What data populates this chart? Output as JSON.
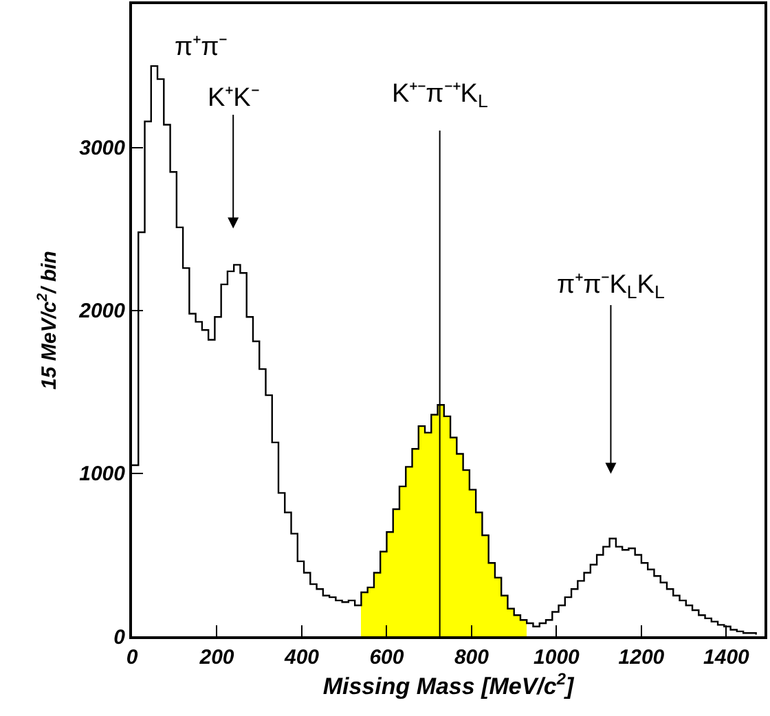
{
  "chart_data": {
    "type": "histogram",
    "xlabel": "Missing Mass [MeV/c$^{2}$]",
    "ylabel": "15 MeV/c$^{2}$/ bin",
    "bins": [
      0,
      15,
      30,
      45,
      60,
      75,
      90,
      105,
      120,
      135,
      150,
      165,
      180,
      195,
      210,
      225,
      240,
      255,
      270,
      285,
      300,
      315,
      330,
      345,
      360,
      375,
      390,
      405,
      420,
      435,
      450,
      465,
      480,
      495,
      510,
      525,
      540,
      555,
      570,
      585,
      600,
      615,
      630,
      645,
      660,
      675,
      690,
      705,
      720,
      735,
      750,
      765,
      780,
      795,
      810,
      825,
      840,
      855,
      870,
      885,
      900,
      915,
      930,
      945,
      960,
      975,
      990,
      1005,
      1020,
      1035,
      1050,
      1065,
      1080,
      1095,
      1110,
      1125,
      1140,
      1155,
      1170,
      1185,
      1200,
      1215,
      1230,
      1245,
      1260,
      1275,
      1290,
      1305,
      1320,
      1335,
      1350,
      1365,
      1380,
      1395,
      1410,
      1425,
      1440,
      1455,
      1470,
      1485
    ],
    "series": [
      {
        "type": "step",
        "color": "#000000",
        "x": [
          0,
          15,
          30,
          45,
          60,
          75,
          90,
          105,
          120,
          135,
          150,
          165,
          180,
          195,
          210,
          225,
          240,
          255,
          270,
          285,
          300,
          315,
          330,
          345,
          360,
          375,
          390,
          405,
          420,
          435,
          450,
          465,
          480,
          495,
          510,
          525,
          540,
          555,
          570,
          585,
          600,
          615,
          630,
          645,
          660,
          675,
          690,
          705,
          720,
          735,
          750,
          765,
          780,
          795,
          810,
          825,
          840,
          855,
          870,
          885,
          900,
          915,
          930,
          945,
          960,
          975,
          990,
          1005,
          1020,
          1035,
          1050,
          1065,
          1080,
          1095,
          1110,
          1125,
          1140,
          1155,
          1170,
          1185,
          1200,
          1215,
          1230,
          1245,
          1260,
          1275,
          1290,
          1305,
          1320,
          1335,
          1350,
          1365,
          1380,
          1395,
          1410,
          1425,
          1440,
          1455,
          1470
        ],
        "values": [
          1050,
          2480,
          3160,
          3500,
          3420,
          3140,
          2850,
          2510,
          2260,
          1980,
          1930,
          1880,
          1820,
          1960,
          2160,
          2240,
          2280,
          2230,
          1960,
          1810,
          1640,
          1480,
          1190,
          880,
          760,
          630,
          460,
          390,
          320,
          290,
          250,
          240,
          220,
          210,
          220,
          190,
          270,
          300,
          390,
          520,
          640,
          780,
          920,
          1040,
          1150,
          1290,
          1250,
          1360,
          1420,
          1350,
          1220,
          1120,
          1020,
          900,
          760,
          620,
          450,
          360,
          250,
          170,
          130,
          100,
          80,
          60,
          80,
          100,
          150,
          190,
          240,
          290,
          340,
          390,
          440,
          500,
          550,
          600,
          550,
          530,
          540,
          500,
          450,
          410,
          370,
          330,
          290,
          250,
          220,
          190,
          160,
          130,
          110,
          90,
          70,
          60,
          40,
          30,
          20,
          20,
          10
        ]
      },
      {
        "color": "#ffff00",
        "values": [
          null,
          null,
          null,
          null,
          null,
          null,
          null,
          null,
          null,
          null,
          null,
          null,
          null,
          null,
          null,
          null,
          null,
          null,
          null,
          null,
          null,
          null,
          null,
          null,
          null,
          null,
          null,
          null,
          null,
          null,
          null,
          null,
          null,
          null,
          null,
          null,
          270,
          300,
          390,
          520,
          640,
          780,
          920,
          1040,
          1150,
          1290,
          1250,
          1360,
          1420,
          1350,
          1220,
          1120,
          1020,
          900,
          760,
          620,
          450,
          360,
          250,
          170,
          130,
          100,
          null,
          null,
          null,
          null,
          null,
          null,
          null,
          null,
          null,
          null,
          null,
          null,
          null,
          null,
          null,
          null,
          null,
          null,
          null,
          null,
          null,
          null,
          null,
          null,
          null,
          null,
          null,
          null,
          null,
          null,
          null,
          null,
          null,
          null,
          null,
          null,
          null
        ]
      }
    ],
    "xlim": [
      0,
      1490
    ],
    "xticks": [
      0,
      200,
      400,
      600,
      800,
      1000,
      1200,
      1400
    ],
    "ylim": [
      0,
      3880
    ],
    "yticks": [
      0,
      1000,
      2000,
      3000
    ],
    "grid": false,
    "marker": "none",
    "ref_lines": [
      {
        "axis": "x",
        "value": 725,
        "label": "K⁺⁻π⁻⁺K$_{L}$",
        "color": "#000000"
      }
    ],
    "annotations": [
      "π⁺π⁻",
      "K⁺K⁻",
      "π⁺π⁻K$_{L}$K$_{L}$"
    ]
  }
}
